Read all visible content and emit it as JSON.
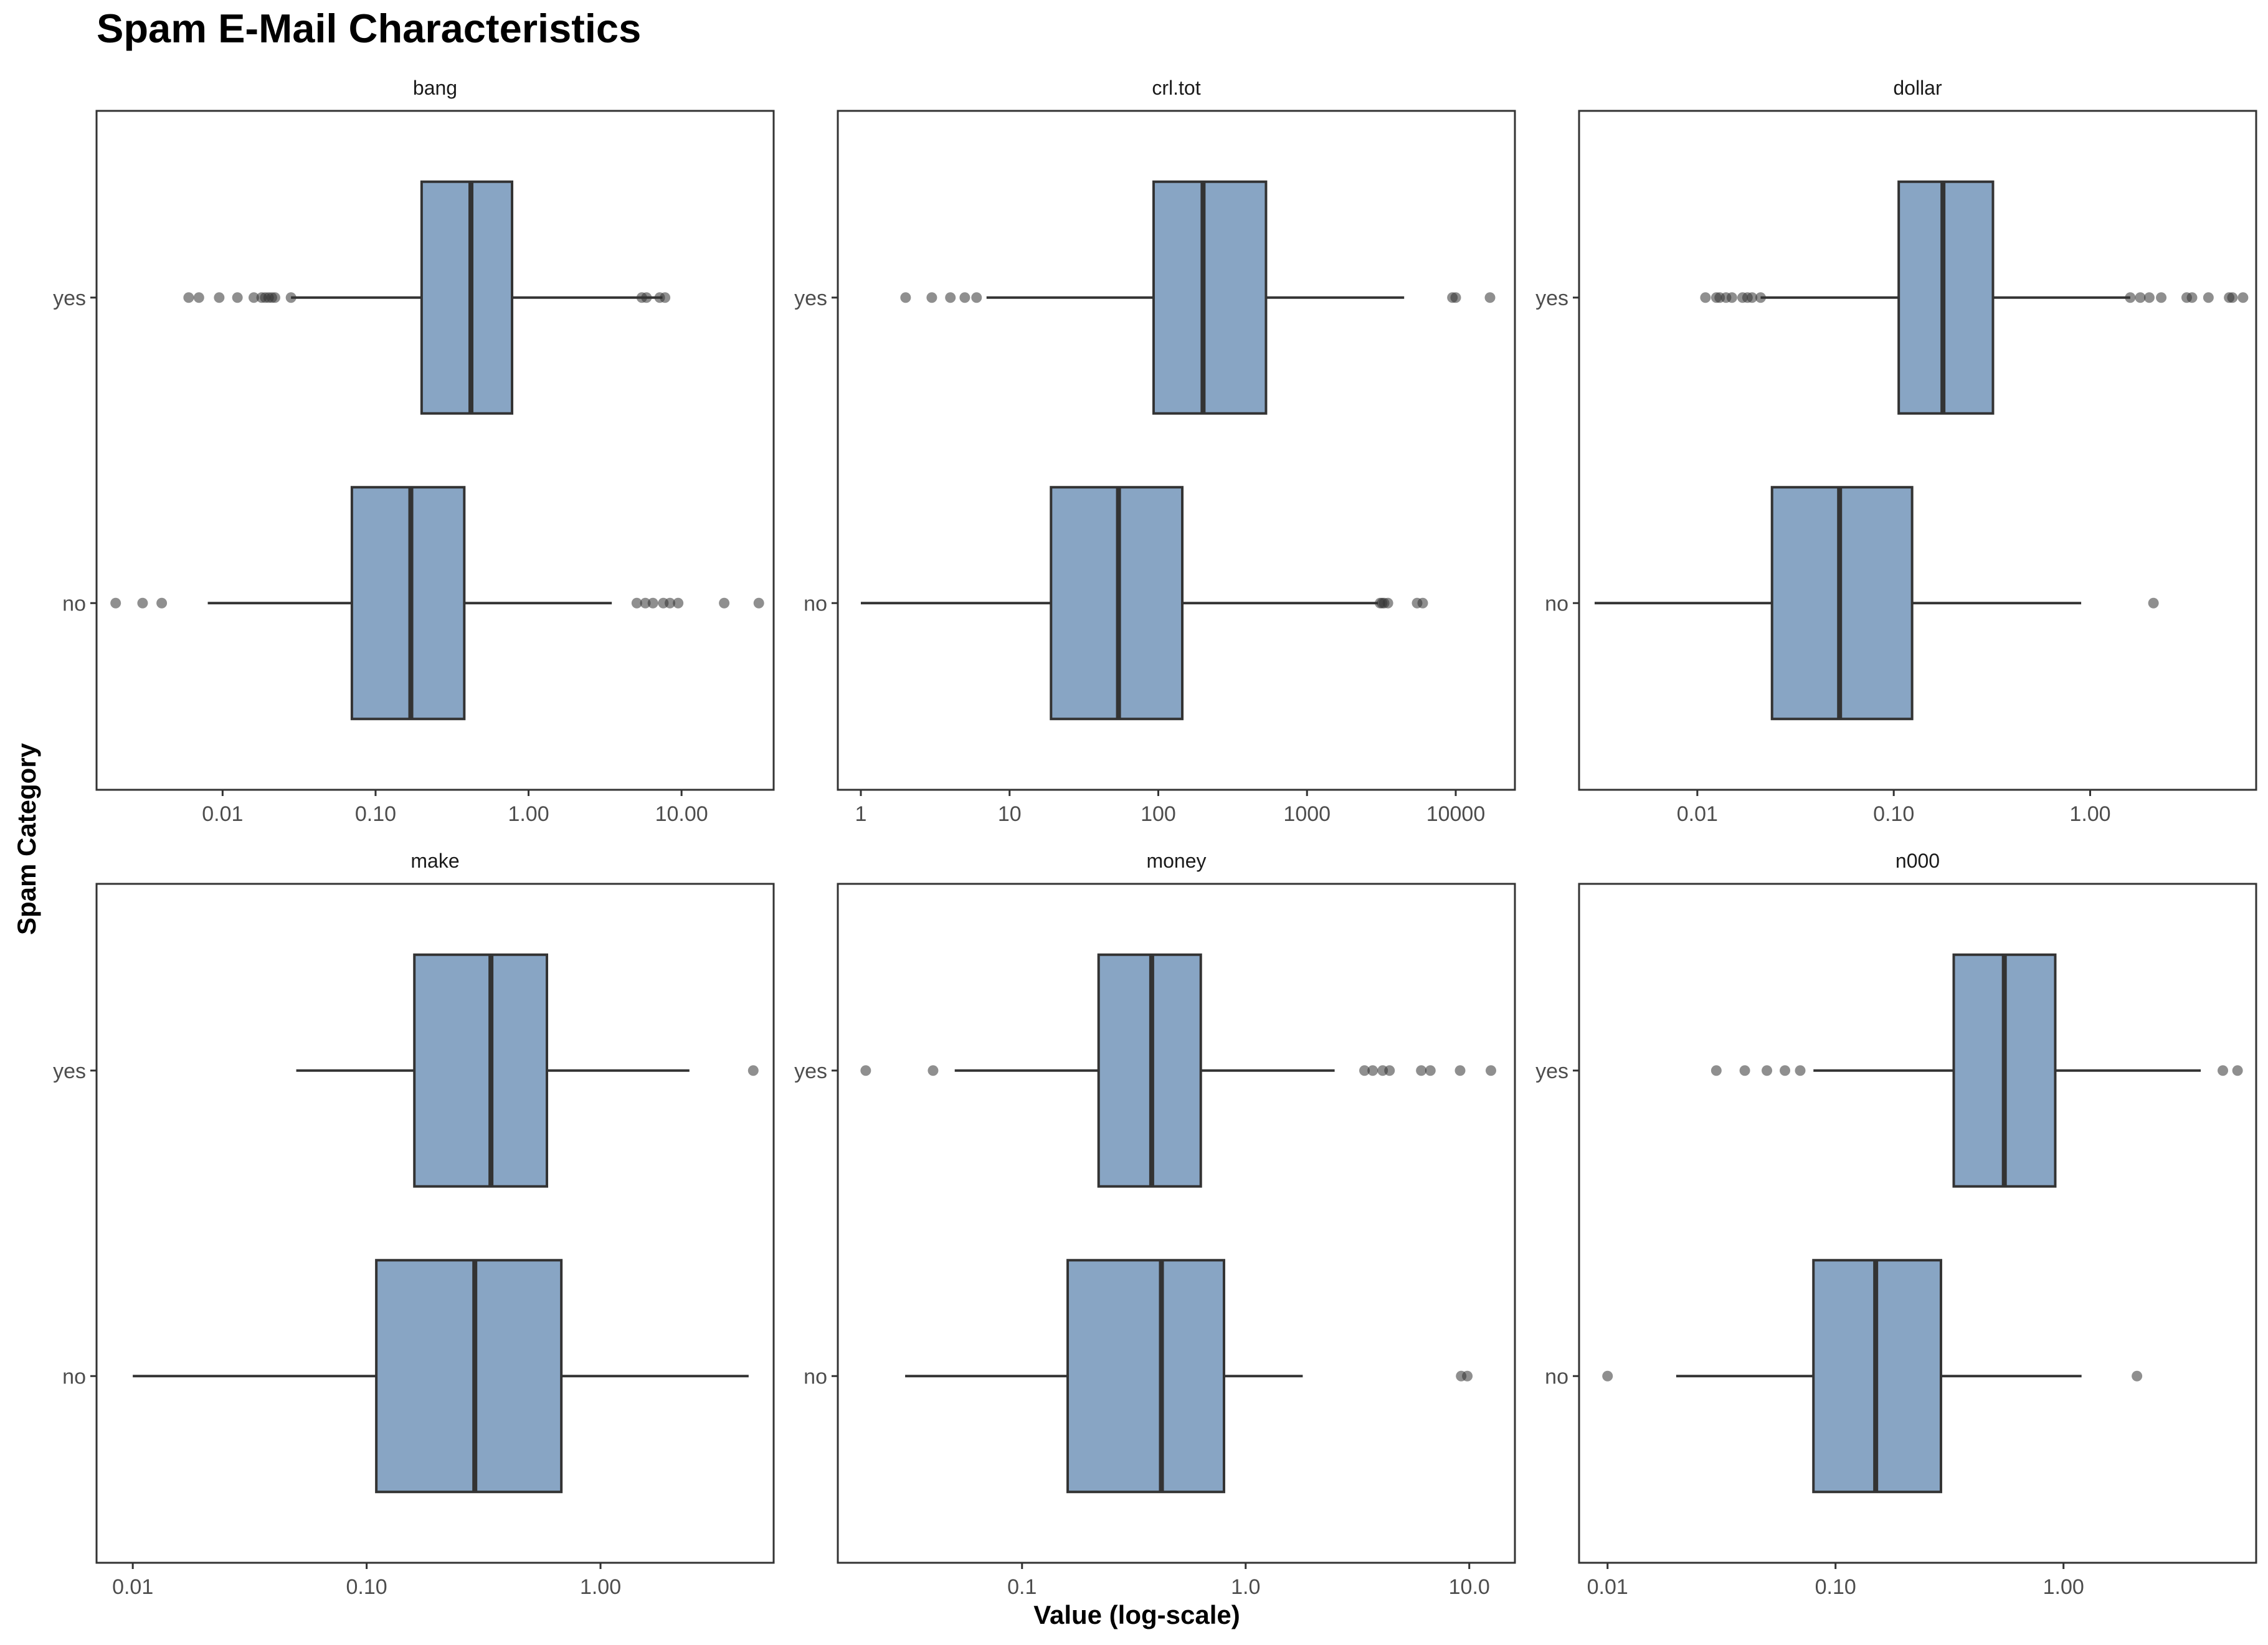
{
  "chart_data": {
    "type": "boxplot",
    "title": "Spam E-Mail Characteristics",
    "xlabel": "Value (log-scale)",
    "ylabel": "Spam Category",
    "x_scale": "log10",
    "grid": false,
    "categories": [
      "yes",
      "no"
    ],
    "colors": {
      "box_fill": "#88a5c4",
      "box_stroke": "#333333",
      "outlier": "#333333",
      "panel_border": "#333333"
    },
    "panels": [
      {
        "name": "bang",
        "xlim": [
          0.0015,
          40
        ],
        "ticks": [
          0.01,
          0.1,
          1,
          10
        ],
        "tick_labels": [
          "0.01",
          "0.10",
          "1.00",
          "10.00"
        ],
        "boxes": [
          {
            "category": "yes",
            "whisker_low": 0.028,
            "q1": 0.2,
            "median": 0.42,
            "q3": 0.78,
            "whisker_high": 7.5,
            "outliers": [
              0.006,
              0.007,
              0.0095,
              0.0125,
              0.016,
              0.018,
              0.019,
              0.02,
              0.021,
              0.022,
              0.028,
              5.5,
              5.9,
              7.2,
              7.8
            ]
          },
          {
            "category": "no",
            "whisker_low": 0.008,
            "q1": 0.07,
            "median": 0.17,
            "q3": 0.38,
            "whisker_high": 3.5,
            "outliers": [
              0.002,
              0.003,
              0.004,
              5.1,
              5.8,
              6.5,
              7.6,
              8.4,
              9.5,
              19,
              32
            ]
          }
        ]
      },
      {
        "name": "crl.tot",
        "xlim": [
          0.7,
          25000
        ],
        "ticks": [
          1,
          10,
          100,
          1000,
          10000
        ],
        "tick_labels": [
          "1",
          "10",
          "100",
          "1000",
          "10000"
        ],
        "boxes": [
          {
            "category": "yes",
            "whisker_low": 7,
            "q1": 93,
            "median": 200,
            "q3": 530,
            "whisker_high": 4500,
            "outliers": [
              2,
              3,
              4,
              5,
              6,
              9500,
              10000,
              17000
            ]
          },
          {
            "category": "no",
            "whisker_low": 1,
            "q1": 19,
            "median": 54,
            "q3": 145,
            "whisker_high": 3000,
            "outliers": [
              3100,
              3200,
              3300,
              3500,
              5500,
              6000
            ]
          }
        ]
      },
      {
        "name": "dollar",
        "xlim": [
          0.0025,
          7
        ],
        "ticks": [
          0.01,
          0.1,
          1
        ],
        "tick_labels": [
          "0.01",
          "0.10",
          "1.00"
        ],
        "boxes": [
          {
            "category": "yes",
            "whisker_low": 0.021,
            "q1": 0.106,
            "median": 0.178,
            "q3": 0.32,
            "whisker_high": 1.6,
            "outliers": [
              0.011,
              0.0125,
              0.013,
              0.014,
              0.015,
              0.017,
              0.018,
              0.019,
              0.021,
              1.6,
              1.8,
              2.0,
              2.3,
              3.1,
              3.3,
              4.0,
              5.1,
              5.3,
              6.0
            ]
          },
          {
            "category": "no",
            "whisker_low": 0.003,
            "q1": 0.024,
            "median": 0.053,
            "q3": 0.124,
            "whisker_high": 0.9,
            "outliers": [
              2.1
            ]
          }
        ]
      },
      {
        "name": "make",
        "xlim": [
          0.007,
          5.5
        ],
        "ticks": [
          0.01,
          0.1,
          1
        ],
        "tick_labels": [
          "0.01",
          "0.10",
          "1.00"
        ],
        "boxes": [
          {
            "category": "yes",
            "whisker_low": 0.05,
            "q1": 0.16,
            "median": 0.34,
            "q3": 0.59,
            "whisker_high": 2.4,
            "outliers": [
              4.5
            ]
          },
          {
            "category": "no",
            "whisker_low": 0.01,
            "q1": 0.11,
            "median": 0.29,
            "q3": 0.68,
            "whisker_high": 4.3,
            "outliers": []
          }
        ]
      },
      {
        "name": "money",
        "xlim": [
          0.015,
          16
        ],
        "ticks": [
          0.1,
          1,
          10
        ],
        "tick_labels": [
          "0.1",
          "1.0",
          "10.0"
        ],
        "boxes": [
          {
            "category": "yes",
            "whisker_low": 0.05,
            "q1": 0.22,
            "median": 0.38,
            "q3": 0.63,
            "whisker_high": 2.5,
            "outliers": [
              0.02,
              0.04,
              3.4,
              3.7,
              4.1,
              4.4,
              6.1,
              6.7,
              9.1,
              12.5
            ]
          },
          {
            "category": "no",
            "whisker_low": 0.03,
            "q1": 0.16,
            "median": 0.42,
            "q3": 0.8,
            "whisker_high": 1.8,
            "outliers": [
              9.2,
              9.8
            ]
          }
        ]
      },
      {
        "name": "n000",
        "xlim": [
          0.0075,
          7
        ],
        "ticks": [
          0.01,
          0.1,
          1
        ],
        "tick_labels": [
          "0.01",
          "0.10",
          "1.00"
        ],
        "boxes": [
          {
            "category": "yes",
            "whisker_low": 0.08,
            "q1": 0.33,
            "median": 0.55,
            "q3": 0.92,
            "whisker_high": 4.0,
            "outliers": [
              0.03,
              0.04,
              0.05,
              0.06,
              0.07,
              5.0,
              5.8
            ]
          },
          {
            "category": "no",
            "whisker_low": 0.02,
            "q1": 0.08,
            "median": 0.15,
            "q3": 0.29,
            "whisker_high": 1.2,
            "outliers": [
              0.01,
              2.1
            ]
          }
        ]
      }
    ]
  }
}
